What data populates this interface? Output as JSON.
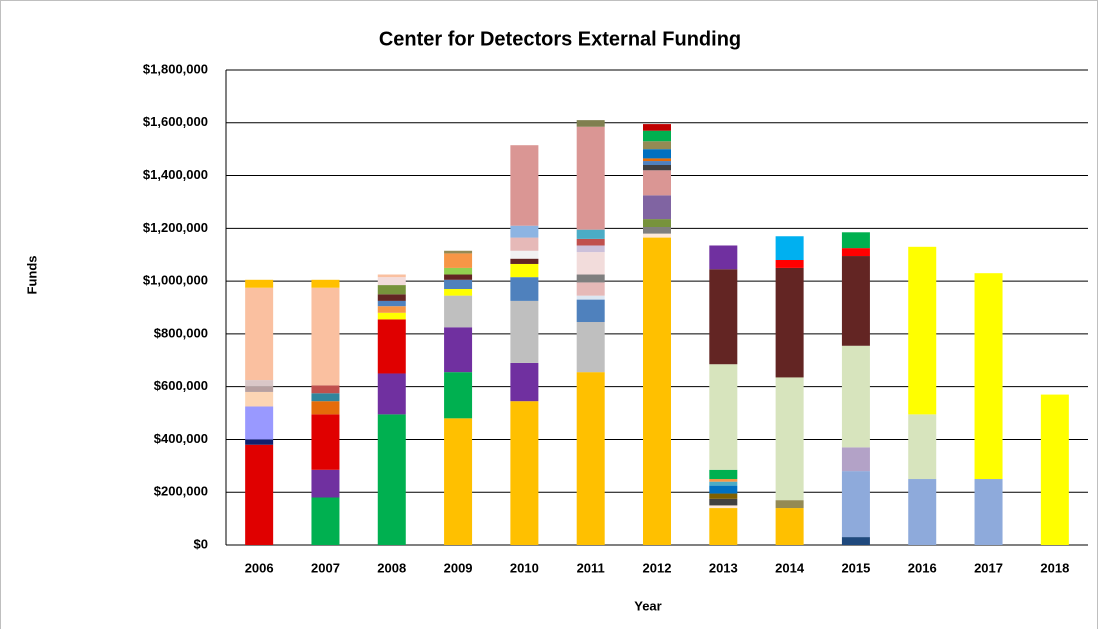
{
  "chart_data": {
    "type": "stacked_bar",
    "title": "Center for Detectors External Funding",
    "x_label": "Year",
    "y_label": "Funds",
    "categories": [
      "2006",
      "2007",
      "2008",
      "2009",
      "2010",
      "2011",
      "2012",
      "2013",
      "2014",
      "2015",
      "2016",
      "2017",
      "2018"
    ],
    "ylim": [
      0,
      1800000
    ],
    "yticks": [
      {
        "value": 0,
        "label": "$0"
      },
      {
        "value": 200000,
        "label": "$200,000"
      },
      {
        "value": 400000,
        "label": "$400,000"
      },
      {
        "value": 600000,
        "label": "$600,000"
      },
      {
        "value": 800000,
        "label": "$800,000"
      },
      {
        "value": 1000000,
        "label": "$1,000,000"
      },
      {
        "value": 1200000,
        "label": "$1,200,000"
      },
      {
        "value": 1400000,
        "label": "$1,400,000"
      },
      {
        "value": 1600000,
        "label": "$1,600,000"
      },
      {
        "value": 1800000,
        "label": "$1,800,000"
      }
    ],
    "grid": true,
    "stacks": [
      [
        {
          "color": "#e00000",
          "value": 380000
        },
        {
          "color": "#10206e",
          "value": 20000
        },
        {
          "color": "#9999ff",
          "value": 125000
        },
        {
          "color": "#fcd5b4",
          "value": 55000
        },
        {
          "color": "#b7a0a0",
          "value": 20000
        },
        {
          "color": "#d9c7c7",
          "value": 25000
        },
        {
          "color": "#fac0a0",
          "value": 350000
        },
        {
          "color": "#ffc000",
          "value": 30000
        }
      ],
      [
        {
          "color": "#00b050",
          "value": 180000
        },
        {
          "color": "#7030a0",
          "value": 105000
        },
        {
          "color": "#e00000",
          "value": 210000
        },
        {
          "color": "#e46c0a",
          "value": 50000
        },
        {
          "color": "#31859c",
          "value": 30000
        },
        {
          "color": "#c0504d",
          "value": 30000
        },
        {
          "color": "#fac0a0",
          "value": 370000
        },
        {
          "color": "#ffc000",
          "value": 30000
        }
      ],
      [
        {
          "color": "#00b050",
          "value": 495000
        },
        {
          "color": "#7030a0",
          "value": 155000
        },
        {
          "color": "#e00000",
          "value": 205000
        },
        {
          "color": "#ffff00",
          "value": 25000
        },
        {
          "color": "#f79646",
          "value": 25000
        },
        {
          "color": "#4f81bd",
          "value": 20000
        },
        {
          "color": "#632523",
          "value": 25000
        },
        {
          "color": "#77933c",
          "value": 35000
        },
        {
          "color": "#f2dcdb",
          "value": 30000
        },
        {
          "color": "#fac0a0",
          "value": 10000
        }
      ],
      [
        {
          "color": "#ffc000",
          "value": 480000
        },
        {
          "color": "#00b050",
          "value": 175000
        },
        {
          "color": "#7030a0",
          "value": 170000
        },
        {
          "color": "#bfbfbf",
          "value": 120000
        },
        {
          "color": "#ffff00",
          "value": 25000
        },
        {
          "color": "#4f81bd",
          "value": 35000
        },
        {
          "color": "#632523",
          "value": 20000
        },
        {
          "color": "#92d050",
          "value": 25000
        },
        {
          "color": "#f79646",
          "value": 55000
        },
        {
          "color": "#948a54",
          "value": 10000
        }
      ],
      [
        {
          "color": "#ffc000",
          "value": 545000
        },
        {
          "color": "#7030a0",
          "value": 145000
        },
        {
          "color": "#bfbfbf",
          "value": 235000
        },
        {
          "color": "#4f81bd",
          "value": 90000
        },
        {
          "color": "#ffff00",
          "value": 50000
        },
        {
          "color": "#632523",
          "value": 20000
        },
        {
          "color": "#f2f2f2",
          "value": 30000
        },
        {
          "color": "#e6b9b8",
          "value": 50000
        },
        {
          "color": "#8db4e2",
          "value": 45000
        },
        {
          "color": "#da9694",
          "value": 305000
        }
      ],
      [
        {
          "color": "#ffc000",
          "value": 655000
        },
        {
          "color": "#bfbfbf",
          "value": 190000
        },
        {
          "color": "#4f81bd",
          "value": 85000
        },
        {
          "color": "#dce6f2",
          "value": 15000
        },
        {
          "color": "#e6b9b8",
          "value": 50000
        },
        {
          "color": "#7f7f7f",
          "value": 30000
        },
        {
          "color": "#f2dcdb",
          "value": 85000
        },
        {
          "color": "#ccc0da",
          "value": 25000
        },
        {
          "color": "#c0504d",
          "value": 25000
        },
        {
          "color": "#4bacc6",
          "value": 35000
        },
        {
          "color": "#da9694",
          "value": 390000
        },
        {
          "color": "#7f7f4f",
          "value": 25000
        }
      ],
      [
        {
          "color": "#ffc000",
          "value": 1165000
        },
        {
          "color": "#fde9d9",
          "value": 15000
        },
        {
          "color": "#7f7f7f",
          "value": 25000
        },
        {
          "color": "#77933c",
          "value": 30000
        },
        {
          "color": "#8064a2",
          "value": 90000
        },
        {
          "color": "#da9694",
          "value": 95000
        },
        {
          "color": "#404040",
          "value": 20000
        },
        {
          "color": "#4f81bd",
          "value": 15000
        },
        {
          "color": "#e46c0a",
          "value": 10000
        },
        {
          "color": "#0070c0",
          "value": 35000
        },
        {
          "color": "#948a54",
          "value": 30000
        },
        {
          "color": "#00b050",
          "value": 40000
        },
        {
          "color": "#c00000",
          "value": 25000
        }
      ],
      [
        {
          "color": "#ffc000",
          "value": 140000
        },
        {
          "color": "#fde9d9",
          "value": 10000
        },
        {
          "color": "#404040",
          "value": 25000
        },
        {
          "color": "#7f6000",
          "value": 20000
        },
        {
          "color": "#0070c0",
          "value": 30000
        },
        {
          "color": "#4bacc6",
          "value": 15000
        },
        {
          "color": "#f79646",
          "value": 10000
        },
        {
          "color": "#00b050",
          "value": 35000
        },
        {
          "color": "#d7e4bd",
          "value": 400000
        },
        {
          "color": "#632523",
          "value": 360000
        },
        {
          "color": "#7030a0",
          "value": 90000
        }
      ],
      [
        {
          "color": "#ffc000",
          "value": 140000
        },
        {
          "color": "#948a54",
          "value": 30000
        },
        {
          "color": "#d7e4bd",
          "value": 465000
        },
        {
          "color": "#632523",
          "value": 415000
        },
        {
          "color": "#ff0000",
          "value": 30000
        },
        {
          "color": "#00b0f0",
          "value": 90000
        }
      ],
      [
        {
          "color": "#1f497d",
          "value": 30000
        },
        {
          "color": "#8eaadb",
          "value": 250000
        },
        {
          "color": "#b3a2c7",
          "value": 90000
        },
        {
          "color": "#d7e4bd",
          "value": 385000
        },
        {
          "color": "#632523",
          "value": 340000
        },
        {
          "color": "#ff0000",
          "value": 30000
        },
        {
          "color": "#00b050",
          "value": 60000
        }
      ],
      [
        {
          "color": "#8eaadb",
          "value": 250000
        },
        {
          "color": "#d7e4bd",
          "value": 245000
        },
        {
          "color": "#ffff00",
          "value": 635000
        }
      ],
      [
        {
          "color": "#8eaadb",
          "value": 250000
        },
        {
          "color": "#ffff00",
          "value": 780000
        }
      ],
      [
        {
          "color": "#ffff00",
          "value": 570000
        }
      ]
    ]
  }
}
